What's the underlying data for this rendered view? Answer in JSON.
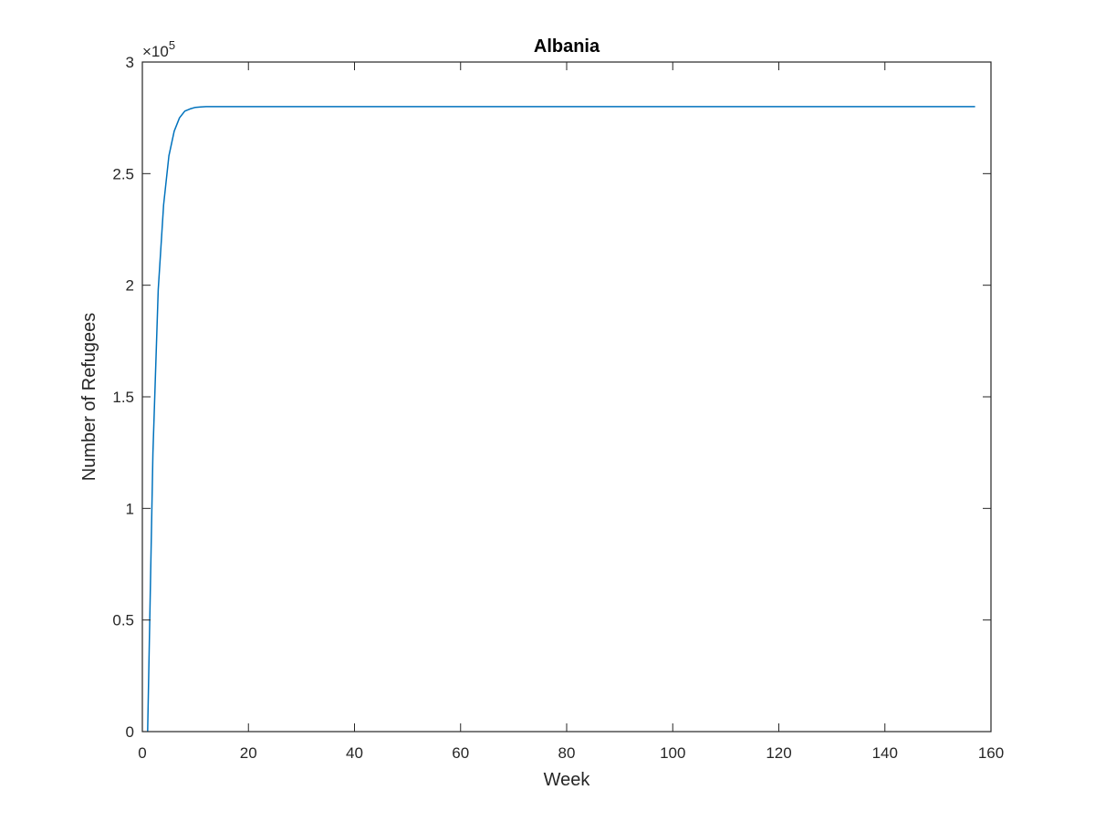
{
  "chart_data": {
    "type": "line",
    "title": "Albania",
    "xlabel": "Week",
    "ylabel": "Number of Refugees",
    "xlim": [
      0,
      160
    ],
    "ylim": [
      0,
      3
    ],
    "y_scale_exponent_label": {
      "base": "×10",
      "exp": "5"
    },
    "xticks": [
      0,
      20,
      40,
      60,
      80,
      100,
      120,
      140,
      160
    ],
    "yticks": [
      0,
      0.5,
      1,
      1.5,
      2,
      2.5,
      3
    ],
    "xtick_labels": [
      "0",
      "20",
      "40",
      "60",
      "80",
      "100",
      "120",
      "140",
      "160"
    ],
    "ytick_labels": [
      "0",
      "0.5",
      "1",
      "1.5",
      "2",
      "2.5",
      "3"
    ],
    "grid": false,
    "line_color": "#0072BD",
    "series": [
      {
        "x": [
          1,
          2,
          3,
          4,
          5,
          6,
          7,
          8,
          9,
          10,
          11,
          12,
          13,
          14,
          15,
          20,
          40,
          60,
          80,
          100,
          120,
          140,
          157
        ],
        "y": [
          0,
          1.25,
          1.98,
          2.36,
          2.58,
          2.69,
          2.75,
          2.78,
          2.79,
          2.797,
          2.799,
          2.8,
          2.8,
          2.8,
          2.8,
          2.8,
          2.8,
          2.8,
          2.8,
          2.8,
          2.8,
          2.8,
          2.8
        ]
      }
    ]
  }
}
